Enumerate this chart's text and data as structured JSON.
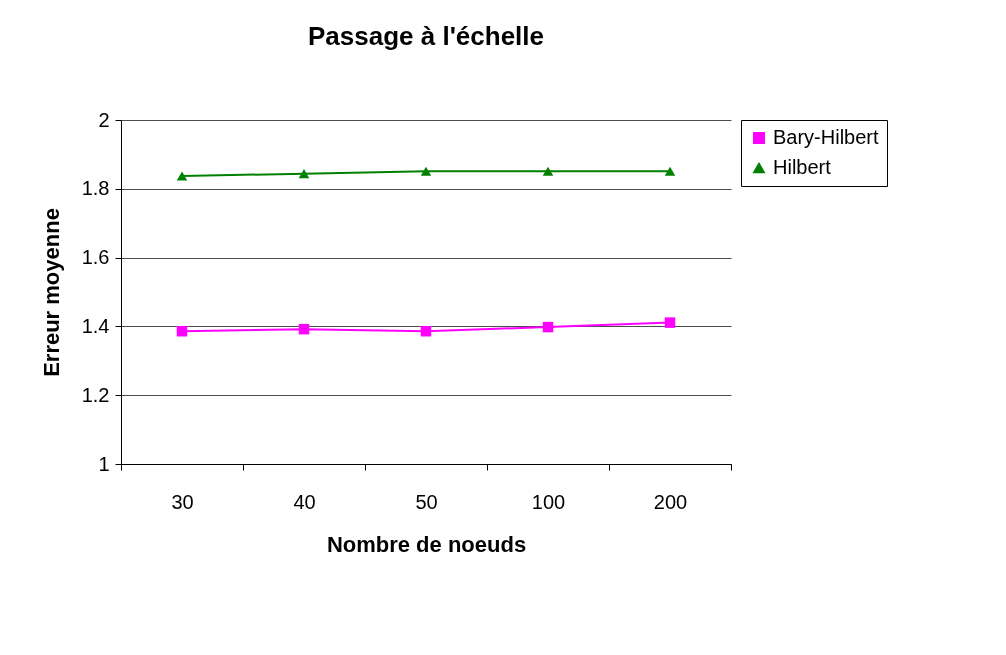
{
  "chart_data": {
    "type": "line",
    "title": "Passage à l'échelle",
    "xlabel": "Nombre de noeuds",
    "ylabel": "Erreur moyenne",
    "categories": [
      "30",
      "40",
      "50",
      "100",
      "200"
    ],
    "series": [
      {
        "name": "Bary-Hilbert",
        "color": "#ff00ff",
        "marker": "square",
        "values": [
          1.386,
          1.392,
          1.386,
          1.398,
          1.411
        ]
      },
      {
        "name": "Hilbert",
        "color": "#008000",
        "marker": "triangle",
        "values": [
          1.837,
          1.844,
          1.851,
          1.851,
          1.851
        ]
      }
    ],
    "ylim": [
      1,
      2
    ],
    "yticks": [
      {
        "value": 1,
        "label": "1"
      },
      1.2,
      1.4,
      1.6,
      1.8,
      {
        "value": 2,
        "label": "2"
      }
    ],
    "grid": "y",
    "legend": "right"
  }
}
